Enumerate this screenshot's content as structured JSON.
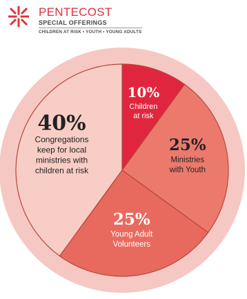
{
  "header": {
    "title": "PENTECOST",
    "subtitle": "SPECIAL OFFERINGS",
    "tagline": "CHILDREN AT RISK • YOUTH • YOUNG ADULTS"
  },
  "colors": {
    "outer_ring": "#f6c8c3",
    "slice_children": "#e0263e",
    "slice_youth": "#ec7a6c",
    "slice_young_adults": "#e86a5f",
    "slice_congregations": "#f8cdc5",
    "text_dark": "#222222",
    "text_light": "#ffffff",
    "logo_red": "#e0303b"
  },
  "chart_data": {
    "type": "pie",
    "title": "",
    "slices": [
      {
        "label": "Children at risk",
        "value": 10,
        "pct_label": "10%"
      },
      {
        "label": "Ministries with Youth",
        "value": 25,
        "pct_label": "25%"
      },
      {
        "label": "Young Adult Volunteers",
        "value": 25,
        "pct_label": "25%"
      },
      {
        "label": "Congregations keep for local ministries with children at risk",
        "value": 40,
        "pct_label": "40%"
      }
    ],
    "label_lines": [
      [
        "Children",
        "at risk"
      ],
      [
        "Ministries",
        "with Youth"
      ],
      [
        "Young Adult",
        "Volunteers"
      ],
      [
        "Congregations",
        "keep for local",
        "ministries with",
        "children at risk"
      ]
    ]
  }
}
